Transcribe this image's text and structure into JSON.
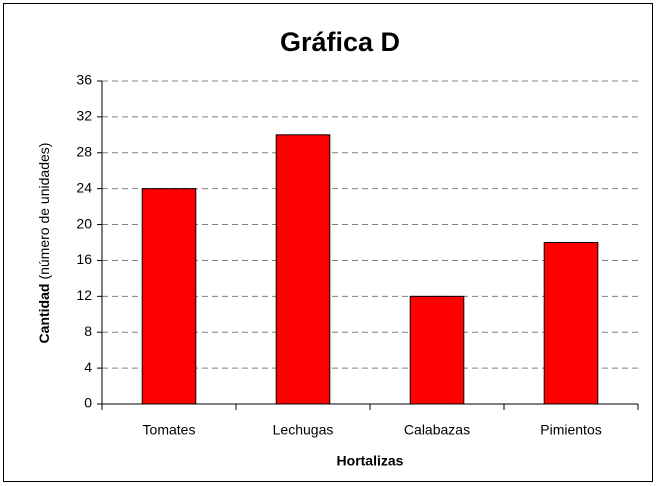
{
  "chart_data": {
    "type": "bar",
    "title": "Gráfica D",
    "xlabel": "Hortalizas",
    "ylabel": [
      "Cantidad",
      "(número de unidades)"
    ],
    "categories": [
      "Tomates",
      "Lechugas",
      "Calabazas",
      "Pimientos"
    ],
    "values": [
      24,
      30,
      12,
      18
    ],
    "color": "#ff0000",
    "ylim": [
      0,
      36
    ],
    "yticks": [
      0,
      4,
      8,
      12,
      16,
      20,
      24,
      28,
      32,
      36
    ],
    "grid": true
  }
}
